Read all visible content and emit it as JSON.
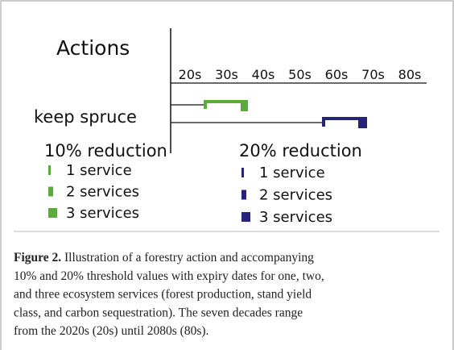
{
  "figure": {
    "row_header": "Actions",
    "decades": [
      "20s",
      "30s",
      "40s",
      "50s",
      "60s",
      "70s",
      "80s"
    ],
    "action": "keep spruce",
    "legend": [
      {
        "title": "10% reduction",
        "items": [
          "1 service",
          "2 services",
          "3 services"
        ]
      },
      {
        "title": "20% reduction",
        "items": [
          "1 service",
          "2 services",
          "3 services"
        ]
      }
    ]
  },
  "caption": {
    "label": "Figure 2.",
    "lines": [
      " Illustration of a forestry action and accompanying",
      "10% and 20% threshold values with expiry dates for one, two,",
      "and three ecosystem services (forest production, stand yield",
      "class, and carbon sequestration). The seven decades range",
      "from the 2020s (20s) until 2080s (80s)."
    ]
  }
}
